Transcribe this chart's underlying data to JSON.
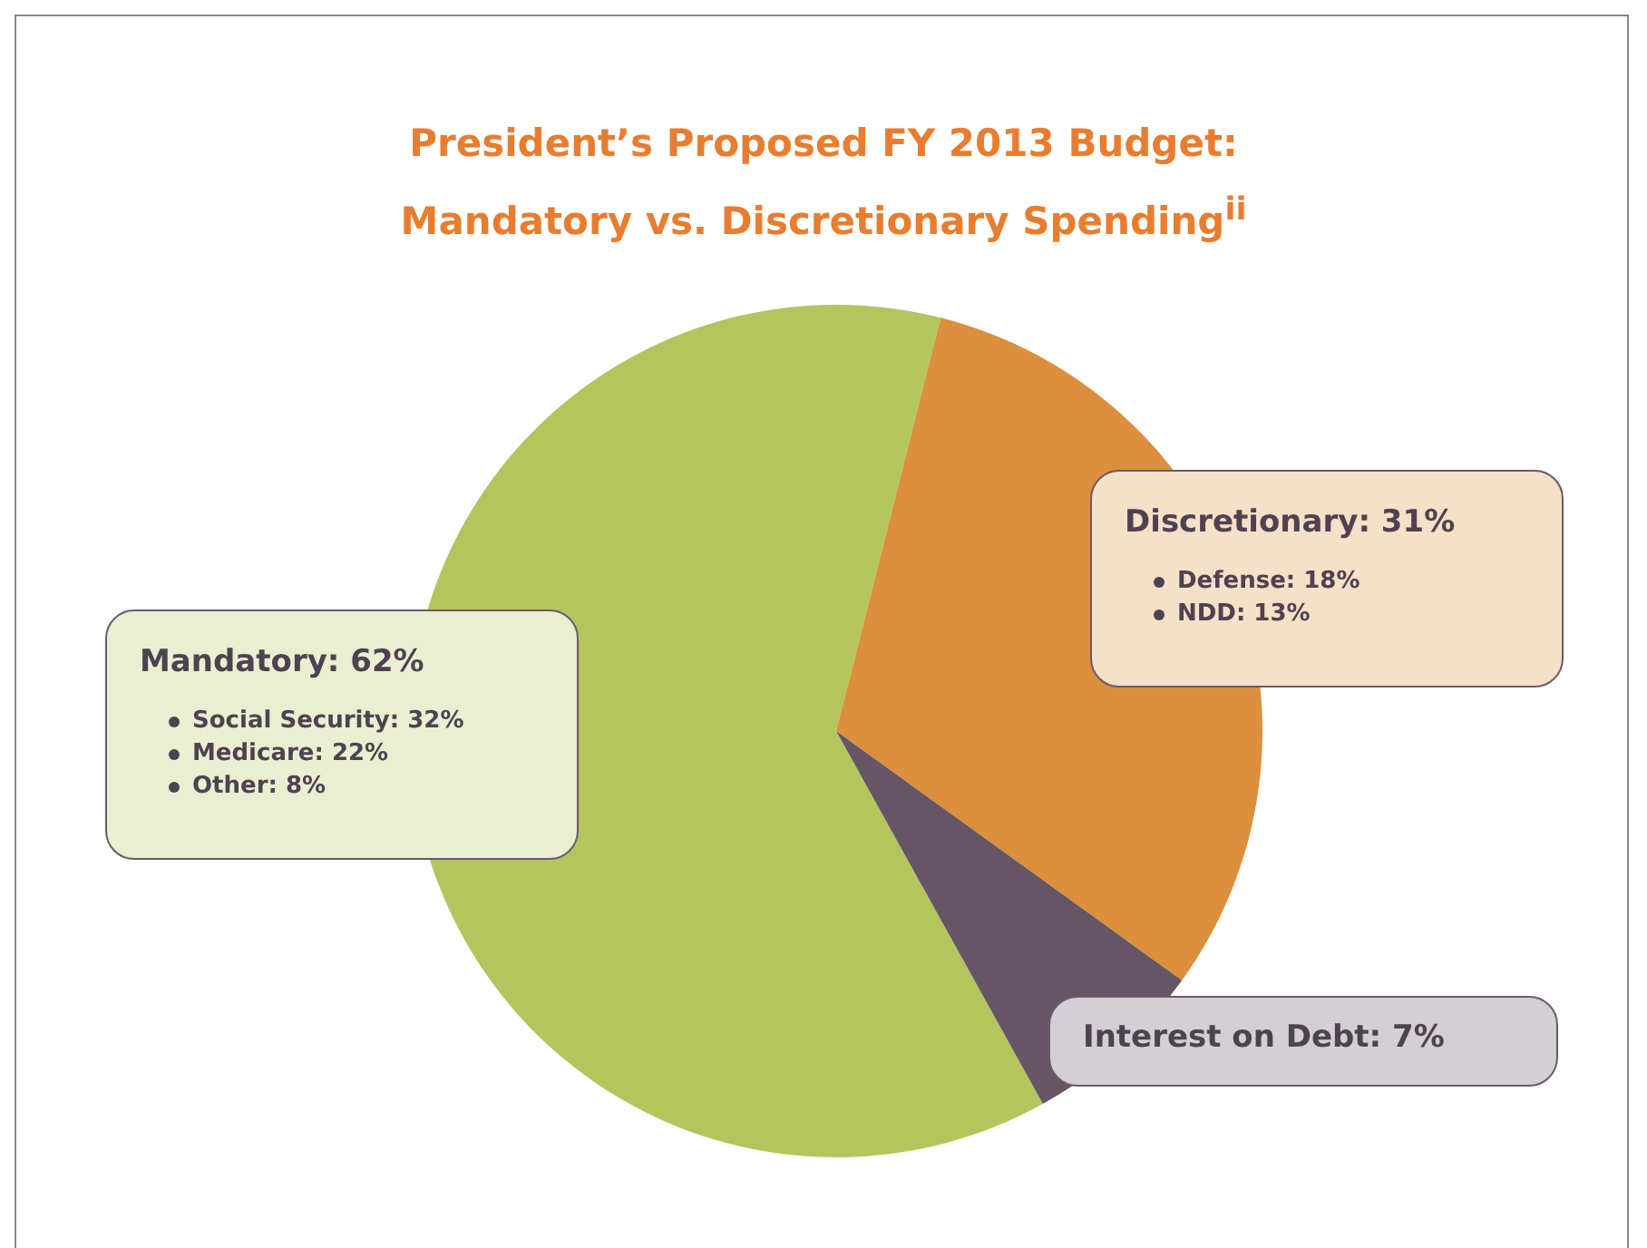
{
  "chart_data": {
    "type": "pie",
    "title": "President’s Proposed FY 2013 Budget:\nMandatory vs. Discretionary Spending$^{ii}$",
    "categories": [
      "Mandatory",
      "Discretionary",
      "Interest on Debt"
    ],
    "values": [
      62,
      31,
      7
    ],
    "value_labels": [
      "62%",
      "31%",
      "7%"
    ],
    "colors": [
      "#b5c55e",
      "#dc8f3c",
      "#655565"
    ],
    "annotations": [
      {
        "text": "Social Security: 32%",
        "x": "Mandatory"
      },
      {
        "text": "Medicare: 22%",
        "x": "Mandatory"
      },
      {
        "text": "Other: 8%",
        "x": "Mandatory"
      },
      {
        "text": "Defense: 18%",
        "x": "Discretionary"
      },
      {
        "text": "NDD: 13%",
        "x": "Discretionary"
      }
    ]
  }
}
